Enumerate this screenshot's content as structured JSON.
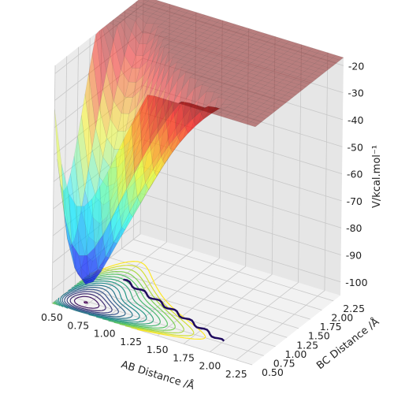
{
  "chart_data": {
    "type": "surface3d",
    "title": "",
    "xlabel": "AB Distance /Å",
    "ylabel": "BC Distance /Å",
    "zlabel": "V/kcal.mol⁻¹",
    "x_ticks": [
      "0.50",
      "0.75",
      "1.00",
      "1.25",
      "1.50",
      "1.75",
      "2.00",
      "2.25"
    ],
    "y_ticks": [
      "0.50",
      "0.75",
      "1.00",
      "1.25",
      "1.50",
      "1.75",
      "2.00",
      "2.25"
    ],
    "z_ticks": [
      "-100",
      "-90",
      "-80",
      "-70",
      "-60",
      "-50",
      "-40",
      "-30",
      "-20"
    ],
    "xlim": [
      0.5,
      2.4
    ],
    "ylim": [
      0.5,
      2.4
    ],
    "zlim": [
      -105,
      -17
    ],
    "surface_colormap": "jet",
    "contour_colormap": "viridis",
    "surface_sample": {
      "x": [
        0.5,
        0.75,
        1.0,
        1.5,
        2.0,
        2.4
      ],
      "y_far_valley": -100,
      "plateau": -23,
      "repulsive_wall_max": -20
    },
    "trajectory": {
      "color": "#1f0a5e",
      "start": [
        0.78,
        1.4
      ],
      "end": [
        2.0,
        0.78
      ]
    }
  }
}
